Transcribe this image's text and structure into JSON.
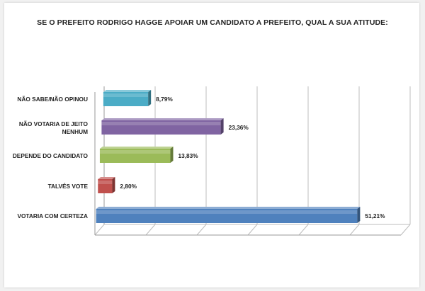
{
  "chart_data": {
    "type": "bar",
    "orientation": "horizontal",
    "title": "SE O PREFEITO RODRIGO HAGGE APOIAR UM CANDIDATO A PREFEITO, QUAL A SUA ATITUDE:",
    "categories": [
      [
        "NÃO SABE/NÃO OPINOU"
      ],
      [
        "NÃO VOTARIA DE JEITO",
        "NENHUM"
      ],
      [
        "DEPENDE DO CANDIDATO"
      ],
      [
        "TALVÉS VOTE"
      ],
      [
        "VOTARIA COM CERTEZA"
      ]
    ],
    "values": [
      8.79,
      23.36,
      13.83,
      2.8,
      51.21
    ],
    "value_labels": [
      "8,79%",
      "23,36%",
      "13,83%",
      "2,80%",
      "51,21%"
    ],
    "colors": [
      "#4bacc6",
      "#8064a2",
      "#9bbb59",
      "#c0504d",
      "#4f81bd"
    ],
    "xlim": [
      0,
      60
    ],
    "gridlines": true,
    "legend": "none"
  }
}
